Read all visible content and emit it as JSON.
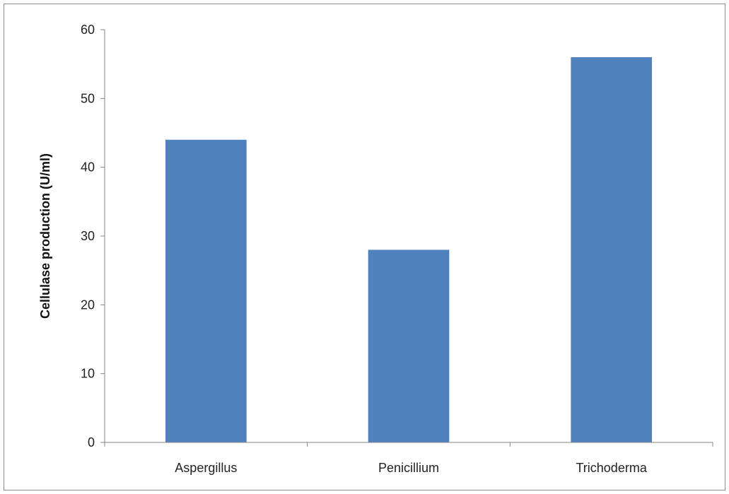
{
  "chart_data": {
    "type": "bar",
    "title": "",
    "xlabel": "",
    "ylabel": "Cellulase production (U/ml)",
    "categories": [
      "Aspergillus",
      "Penicillium",
      "Trichoderma"
    ],
    "values": [
      44,
      28,
      56
    ],
    "ylim": [
      0,
      60
    ],
    "yticks": [
      0,
      10,
      20,
      30,
      40,
      50,
      60
    ],
    "bar_color": "#4f81bd",
    "grid": false,
    "legend": "none"
  }
}
